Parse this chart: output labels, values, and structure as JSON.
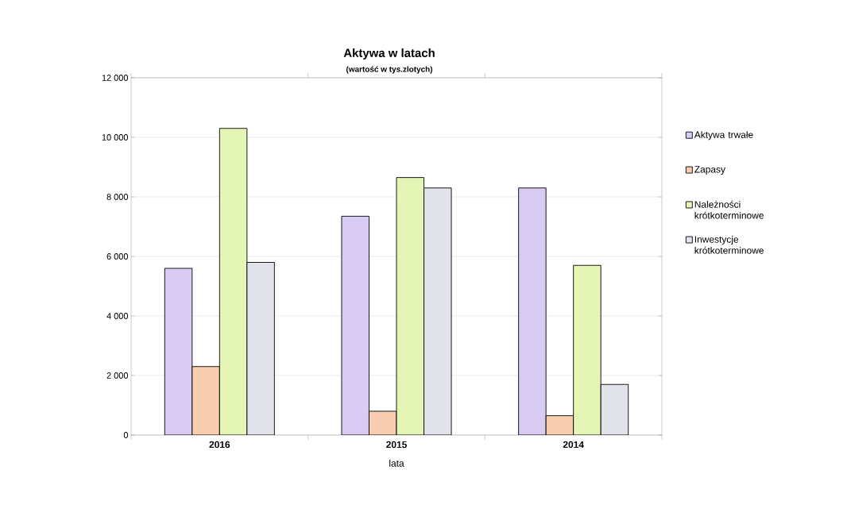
{
  "chart_data": {
    "type": "bar",
    "title": "Aktywa w latach",
    "subtitle": "(wartość w tys.zlotych)",
    "xlabel": "lata",
    "categories": [
      "2016",
      "2015",
      "2014"
    ],
    "series": [
      {
        "name": "Aktywa trwałe",
        "color": "#d9ccf2",
        "values": [
          5600,
          7350,
          8300
        ]
      },
      {
        "name": "Zapasy",
        "color": "#f9cdb0",
        "values": [
          2300,
          800,
          650
        ]
      },
      {
        "name": "Należności krótkoterminowe",
        "color": "#e5f5b5",
        "values": [
          10300,
          8650,
          5700
        ]
      },
      {
        "name": "Inwestycje krótkoterminowe",
        "color": "#e2e2ea",
        "values": [
          5800,
          8300,
          1700
        ]
      }
    ],
    "ylim": [
      0,
      12000
    ],
    "yticks": [
      {
        "value": 0,
        "label": "0"
      },
      {
        "value": 2000,
        "label": "2 000"
      },
      {
        "value": 4000,
        "label": "4 000"
      },
      {
        "value": 6000,
        "label": "6 000"
      },
      {
        "value": 8000,
        "label": "8 000"
      },
      {
        "value": 10000,
        "label": "10 000"
      },
      {
        "value": 12000,
        "label": "12 000"
      }
    ],
    "grid": "y",
    "legend": "right"
  }
}
